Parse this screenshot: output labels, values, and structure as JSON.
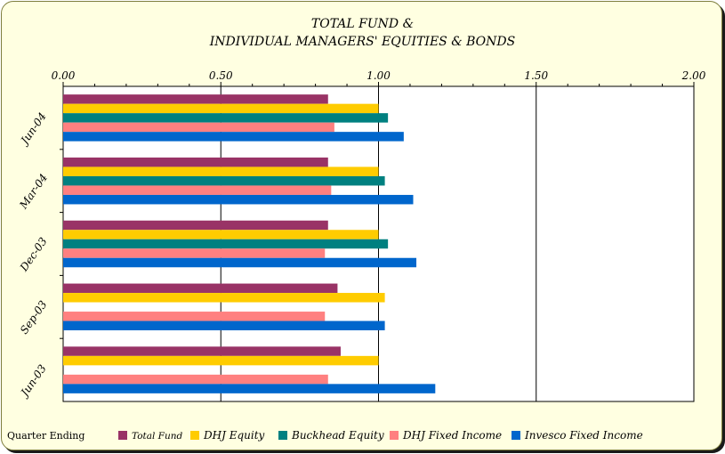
{
  "chart_data": {
    "type": "bar",
    "orientation": "horizontal",
    "title_lines": [
      "TOTAL FUND &",
      "INDIVIDUAL MANAGERS' EQUITIES & BONDS"
    ],
    "xlabel": "",
    "ylabel": "Quarter Ending",
    "xlim": [
      0,
      2
    ],
    "x_ticks": [
      "0.00",
      "0.50",
      "1.00",
      "1.50",
      "2.00"
    ],
    "x_axis_position": "top",
    "gridlines": "vertical at major ticks",
    "legend_position": "bottom",
    "categories": [
      "Jun-04",
      "Mar-04",
      "Dec-03",
      "Sep-03",
      "Jun-03"
    ],
    "series": [
      {
        "name": "Total Fund",
        "color": "#993366",
        "values": [
          0.84,
          0.84,
          0.84,
          0.87,
          0.88
        ]
      },
      {
        "name": "DHJ Equity",
        "color": "#ffcc00",
        "values": [
          1.0,
          1.0,
          1.0,
          1.02,
          1.0
        ]
      },
      {
        "name": "Buckhead Equity",
        "color": "#008080",
        "values": [
          1.03,
          1.02,
          1.03,
          null,
          null
        ]
      },
      {
        "name": "DHJ Fixed Income",
        "color": "#ff8080",
        "values": [
          0.86,
          0.85,
          0.83,
          0.83,
          0.84
        ]
      },
      {
        "name": "Invesco Fixed Income",
        "color": "#0066cc",
        "values": [
          1.08,
          1.11,
          1.12,
          1.02,
          1.18
        ]
      }
    ]
  },
  "colors": {
    "background": "#ffffe1",
    "plot_background": "#ffffff",
    "border": "#7f7f3f"
  }
}
